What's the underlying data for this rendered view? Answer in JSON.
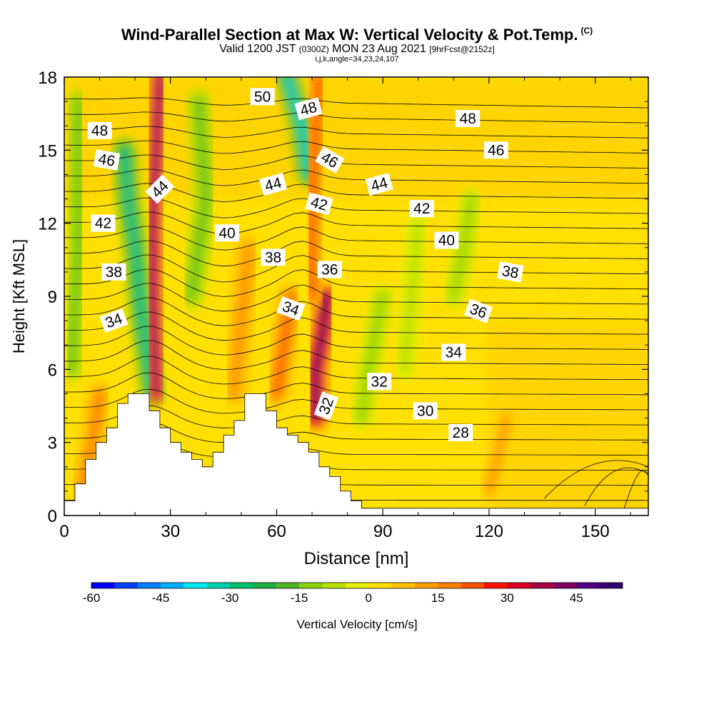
{
  "title": {
    "main": "Wind-Parallel Section at Max W: Vertical Velocity & Pot.Temp.",
    "copyright": "(C)",
    "valid_prefix": "Valid 1200 JST",
    "valid_z": "(0300Z)",
    "valid_date": "MON 23 Aug 2021",
    "forecast": "[9hrFcst@2152z]",
    "indices": "i,j,k,angle=34,23,24,107"
  },
  "chart_data": {
    "type": "heatmap",
    "xlabel": "Distance [nm]",
    "ylabel": "Height [Kft MSL]",
    "xlim": [
      0,
      165
    ],
    "ylim": [
      0,
      18
    ],
    "xticks": [
      0,
      30,
      60,
      90,
      120,
      150
    ],
    "yticks": [
      0,
      3,
      6,
      9,
      12,
      15,
      18
    ],
    "colorbar": {
      "label": "Vertical Velocity [cm/s]",
      "min": -60,
      "max": 55,
      "step": 5,
      "tick_values": [
        -60,
        -45,
        -30,
        -15,
        0,
        15,
        30,
        45
      ],
      "colors": [
        "#0000ff",
        "#0040ff",
        "#0080ff",
        "#00b0ff",
        "#00e8f0",
        "#00d0b0",
        "#00c070",
        "#20b040",
        "#50b820",
        "#88d010",
        "#b8e000",
        "#e8f000",
        "#ffe000",
        "#ffc000",
        "#ffa000",
        "#ff8000",
        "#ff5000",
        "#ff1000",
        "#d80020",
        "#a80040",
        "#800060",
        "#500080",
        "#300070"
      ]
    },
    "terrain": [
      [
        0,
        0.6
      ],
      [
        3,
        0.6
      ],
      [
        3,
        1.3
      ],
      [
        6,
        1.3
      ],
      [
        6,
        2.3
      ],
      [
        9,
        2.3
      ],
      [
        9,
        3.0
      ],
      [
        12,
        3.0
      ],
      [
        12,
        3.6
      ],
      [
        15,
        3.6
      ],
      [
        15,
        4.6
      ],
      [
        18,
        4.6
      ],
      [
        18,
        5.0
      ],
      [
        24,
        5.0
      ],
      [
        24,
        4.3
      ],
      [
        27,
        4.3
      ],
      [
        27,
        3.6
      ],
      [
        30,
        3.6
      ],
      [
        30,
        3.0
      ],
      [
        33,
        3.0
      ],
      [
        33,
        2.6
      ],
      [
        36,
        2.6
      ],
      [
        36,
        2.3
      ],
      [
        39,
        2.3
      ],
      [
        39,
        2.0
      ],
      [
        42,
        2.0
      ],
      [
        42,
        2.6
      ],
      [
        45,
        2.6
      ],
      [
        45,
        3.3
      ],
      [
        48,
        3.3
      ],
      [
        48,
        3.9
      ],
      [
        51,
        3.9
      ],
      [
        51,
        5.0
      ],
      [
        57,
        5.0
      ],
      [
        57,
        4.3
      ],
      [
        60,
        4.3
      ],
      [
        60,
        3.6
      ],
      [
        63,
        3.6
      ],
      [
        63,
        3.3
      ],
      [
        66,
        3.3
      ],
      [
        66,
        3.0
      ],
      [
        69,
        3.0
      ],
      [
        69,
        2.6
      ],
      [
        72,
        2.6
      ],
      [
        72,
        2.0
      ],
      [
        75,
        2.0
      ],
      [
        75,
        1.6
      ],
      [
        78,
        1.6
      ],
      [
        78,
        1.0
      ],
      [
        81,
        1.0
      ],
      [
        81,
        0.6
      ],
      [
        84,
        0.6
      ],
      [
        84,
        0.3
      ],
      [
        165,
        0.3
      ]
    ],
    "updrafts": [
      {
        "x": [
          26,
          25,
          25,
          26,
          27
        ],
        "y": [
          5,
          9,
          12,
          15,
          18
        ],
        "w": 48
      },
      {
        "x": [
          71,
          71,
          73,
          74
        ],
        "y": [
          4,
          6,
          7.5,
          9
        ],
        "w": 55
      },
      {
        "x": [
          60,
          62,
          64
        ],
        "y": [
          5,
          7,
          9
        ],
        "w": 25
      },
      {
        "x": [
          70,
          70,
          72
        ],
        "y": [
          9,
          13,
          18
        ],
        "w": 25
      },
      {
        "x": [
          48,
          50,
          52
        ],
        "y": [
          5,
          8,
          11
        ],
        "w": 18
      },
      {
        "x": [
          5,
          8,
          10
        ],
        "y": [
          1,
          3,
          5
        ],
        "w": 20
      },
      {
        "x": [
          120,
          125
        ],
        "y": [
          1,
          4
        ],
        "w": 15
      }
    ],
    "downdrafts": [
      {
        "x": [
          25,
          22,
          20,
          18,
          17
        ],
        "y": [
          5,
          8,
          11,
          13,
          15
        ],
        "w": -35
      },
      {
        "x": [
          69,
          67,
          65,
          63
        ],
        "y": [
          14,
          16,
          17,
          18
        ],
        "w": -38
      },
      {
        "x": [
          84,
          86,
          90
        ],
        "y": [
          4,
          6,
          9
        ],
        "w": -15
      },
      {
        "x": [
          2,
          4,
          4
        ],
        "y": [
          6,
          11,
          17
        ],
        "w": -18
      },
      {
        "x": [
          36,
          40,
          38
        ],
        "y": [
          9,
          13,
          17
        ],
        "w": -20
      },
      {
        "x": [
          96,
          100
        ],
        "y": [
          6,
          12
        ],
        "w": -10
      },
      {
        "x": [
          110,
          113,
          115
        ],
        "y": [
          9,
          11,
          13
        ],
        "w": -12
      }
    ],
    "theta_contours": [
      {
        "label": "28",
        "lx": 112,
        "ly": 3.4,
        "rot": 0
      },
      {
        "label": "30",
        "lx": 102,
        "ly": 4.3,
        "rot": 0
      },
      {
        "label": "32",
        "lx": 89,
        "ly": 5.5,
        "rot": 0
      },
      {
        "label": "32",
        "lx": 74,
        "ly": 4.5,
        "rot": -70
      },
      {
        "label": "34",
        "lx": 14,
        "ly": 8.0,
        "rot": -20
      },
      {
        "label": "34",
        "lx": 110,
        "ly": 6.7,
        "rot": 0
      },
      {
        "label": "34",
        "lx": 64,
        "ly": 8.5,
        "rot": 20
      },
      {
        "label": "36",
        "lx": 75,
        "ly": 10.1,
        "rot": 0
      },
      {
        "label": "36",
        "lx": 117,
        "ly": 8.4,
        "rot": 20
      },
      {
        "label": "38",
        "lx": 14,
        "ly": 10.0,
        "rot": 0
      },
      {
        "label": "38",
        "lx": 59,
        "ly": 10.6,
        "rot": 0
      },
      {
        "label": "38",
        "lx": 126,
        "ly": 10.0,
        "rot": 10
      },
      {
        "label": "40",
        "lx": 46,
        "ly": 11.6,
        "rot": 0
      },
      {
        "label": "40",
        "lx": 108,
        "ly": 11.3,
        "rot": 0
      },
      {
        "label": "42",
        "lx": 11,
        "ly": 12.0,
        "rot": 0
      },
      {
        "label": "42",
        "lx": 72,
        "ly": 12.8,
        "rot": 15
      },
      {
        "label": "42",
        "lx": 101,
        "ly": 12.6,
        "rot": 0
      },
      {
        "label": "44",
        "lx": 27,
        "ly": 13.4,
        "rot": -45
      },
      {
        "label": "44",
        "lx": 59,
        "ly": 13.6,
        "rot": -15
      },
      {
        "label": "44",
        "lx": 89,
        "ly": 13.6,
        "rot": -15
      },
      {
        "label": "46",
        "lx": 12,
        "ly": 14.6,
        "rot": 10
      },
      {
        "label": "46",
        "lx": 75,
        "ly": 14.6,
        "rot": 30
      },
      {
        "label": "46",
        "lx": 122,
        "ly": 15.0,
        "rot": 0
      },
      {
        "label": "48",
        "lx": 10,
        "ly": 15.8,
        "rot": 0
      },
      {
        "label": "48",
        "lx": 69,
        "ly": 16.7,
        "rot": -15
      },
      {
        "label": "48",
        "lx": 114,
        "ly": 16.3,
        "rot": 0
      },
      {
        "label": "50",
        "lx": 56,
        "ly": 17.2,
        "rot": 0
      }
    ]
  }
}
